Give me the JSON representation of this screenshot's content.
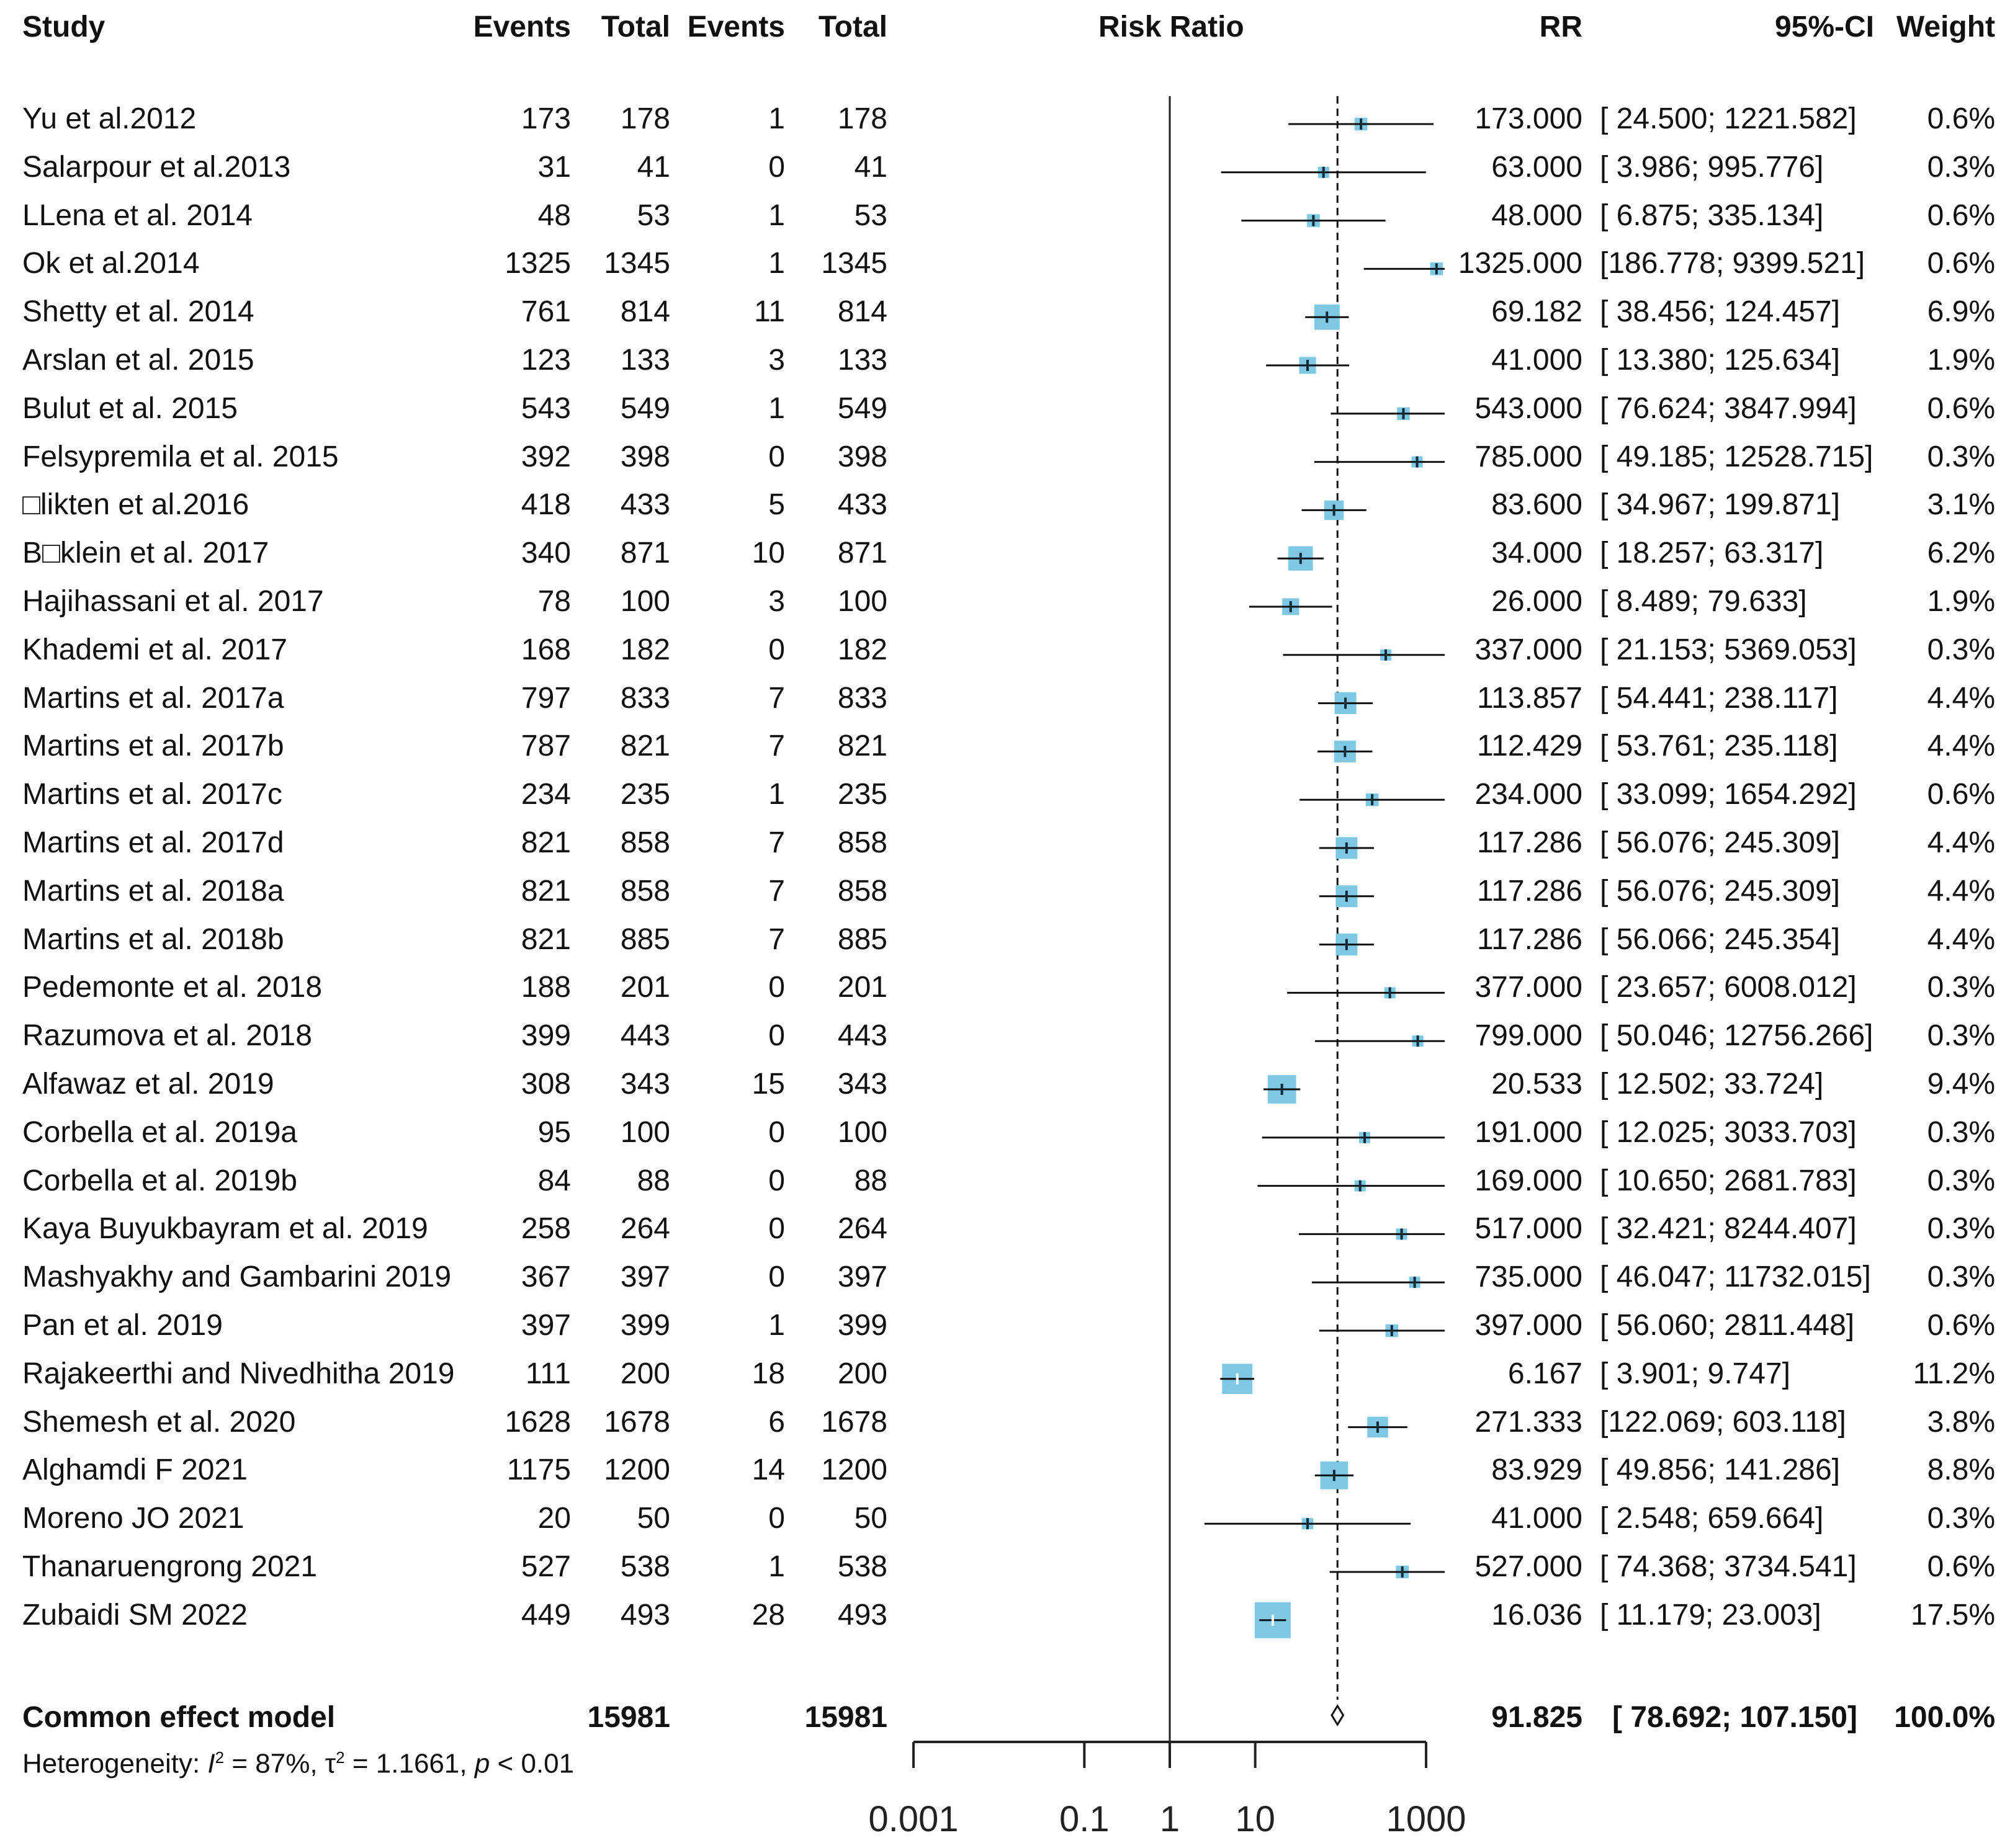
{
  "headers": {
    "study": "Study",
    "events1": "Events",
    "total1": "Total",
    "events2": "Events",
    "total2": "Total",
    "risk_ratio": "Risk Ratio",
    "rr": "RR",
    "ci": "95%-CI",
    "weight": "Weight"
  },
  "chart_data": {
    "type": "forest",
    "scale": "log",
    "xlim": [
      0.001,
      1000
    ],
    "x_ticks": [
      "0.001",
      "0.1",
      "1",
      "10",
      "1000"
    ],
    "reference_line": 1,
    "pooled_dashed_line": 91.825,
    "marker_color": "#7ec8e3",
    "studies": [
      {
        "study": "Yu et al.2012",
        "e1": "173",
        "n1": "178",
        "e2": "1",
        "n2": "178",
        "rr": "173.000",
        "ci": "[ 24.500; 1221.582]",
        "weight": "0.6%",
        "rr_val": 173.0,
        "lo": 24.5,
        "hi": 1221.582,
        "w": 0.6
      },
      {
        "study": "Salarpour et al.2013",
        "e1": "31",
        "n1": "41",
        "e2": "0",
        "n2": "41",
        "rr": "63.000",
        "ci": "[ 3.986; 995.776]",
        "weight": "0.3%",
        "rr_val": 63.0,
        "lo": 3.986,
        "hi": 995.776,
        "w": 0.3
      },
      {
        "study": "LLena et al. 2014",
        "e1": "48",
        "n1": "53",
        "e2": "1",
        "n2": "53",
        "rr": "48.000",
        "ci": "[ 6.875; 335.134]",
        "weight": "0.6%",
        "rr_val": 48.0,
        "lo": 6.875,
        "hi": 335.134,
        "w": 0.6
      },
      {
        "study": "Ok et al.2014",
        "e1": "1325",
        "n1": "1345",
        "e2": "1",
        "n2": "1345",
        "rr": "1325.000",
        "ci": "[186.778; 9399.521]",
        "weight": "0.6%",
        "rr_val": 1325.0,
        "lo": 186.778,
        "hi": 9399.521,
        "w": 0.6
      },
      {
        "study": "Shetty et al. 2014",
        "e1": "761",
        "n1": "814",
        "e2": "11",
        "n2": "814",
        "rr": "69.182",
        "ci": "[ 38.456; 124.457]",
        "weight": "6.9%",
        "rr_val": 69.182,
        "lo": 38.456,
        "hi": 124.457,
        "w": 6.9
      },
      {
        "study": "Arslan et al. 2015",
        "e1": "123",
        "n1": "133",
        "e2": "3",
        "n2": "133",
        "rr": "41.000",
        "ci": "[ 13.380; 125.634]",
        "weight": "1.9%",
        "rr_val": 41.0,
        "lo": 13.38,
        "hi": 125.634,
        "w": 1.9
      },
      {
        "study": "Bulut et al. 2015",
        "e1": "543",
        "n1": "549",
        "e2": "1",
        "n2": "549",
        "rr": "543.000",
        "ci": "[ 76.624; 3847.994]",
        "weight": "0.6%",
        "rr_val": 543.0,
        "lo": 76.624,
        "hi": 3847.994,
        "w": 0.6
      },
      {
        "study": "Felsypremila et al. 2015",
        "e1": "392",
        "n1": "398",
        "e2": "0",
        "n2": "398",
        "rr": "785.000",
        "ci": "[ 49.185; 12528.715]",
        "weight": "0.3%",
        "rr_val": 785.0,
        "lo": 49.185,
        "hi": 12528.715,
        "w": 0.3
      },
      {
        "study": "□likten et al.2016",
        "e1": "418",
        "n1": "433",
        "e2": "5",
        "n2": "433",
        "rr": "83.600",
        "ci": "[ 34.967; 199.871]",
        "weight": "3.1%",
        "rr_val": 83.6,
        "lo": 34.967,
        "hi": 199.871,
        "w": 3.1
      },
      {
        "study": "B□klein et al. 2017",
        "e1": "340",
        "n1": "871",
        "e2": "10",
        "n2": "871",
        "rr": "34.000",
        "ci": "[ 18.257; 63.317]",
        "weight": "6.2%",
        "rr_val": 34.0,
        "lo": 18.257,
        "hi": 63.317,
        "w": 6.2
      },
      {
        "study": "Hajihassani et al. 2017",
        "e1": "78",
        "n1": "100",
        "e2": "3",
        "n2": "100",
        "rr": "26.000",
        "ci": "[ 8.489; 79.633]",
        "weight": "1.9%",
        "rr_val": 26.0,
        "lo": 8.489,
        "hi": 79.633,
        "w": 1.9
      },
      {
        "study": "Khademi et al. 2017",
        "e1": "168",
        "n1": "182",
        "e2": "0",
        "n2": "182",
        "rr": "337.000",
        "ci": "[ 21.153; 5369.053]",
        "weight": "0.3%",
        "rr_val": 337.0,
        "lo": 21.153,
        "hi": 5369.053,
        "w": 0.3
      },
      {
        "study": "Martins et al. 2017a",
        "e1": "797",
        "n1": "833",
        "e2": "7",
        "n2": "833",
        "rr": "113.857",
        "ci": "[ 54.441; 238.117]",
        "weight": "4.4%",
        "rr_val": 113.857,
        "lo": 54.441,
        "hi": 238.117,
        "w": 4.4
      },
      {
        "study": "Martins et al. 2017b",
        "e1": "787",
        "n1": "821",
        "e2": "7",
        "n2": "821",
        "rr": "112.429",
        "ci": "[ 53.761; 235.118]",
        "weight": "4.4%",
        "rr_val": 112.429,
        "lo": 53.761,
        "hi": 235.118,
        "w": 4.4
      },
      {
        "study": "Martins et al. 2017c",
        "e1": "234",
        "n1": "235",
        "e2": "1",
        "n2": "235",
        "rr": "234.000",
        "ci": "[ 33.099; 1654.292]",
        "weight": "0.6%",
        "rr_val": 234.0,
        "lo": 33.099,
        "hi": 1654.292,
        "w": 0.6
      },
      {
        "study": "Martins et al. 2017d",
        "e1": "821",
        "n1": "858",
        "e2": "7",
        "n2": "858",
        "rr": "117.286",
        "ci": "[ 56.076; 245.309]",
        "weight": "4.4%",
        "rr_val": 117.286,
        "lo": 56.076,
        "hi": 245.309,
        "w": 4.4
      },
      {
        "study": "Martins et al. 2018a",
        "e1": "821",
        "n1": "858",
        "e2": "7",
        "n2": "858",
        "rr": "117.286",
        "ci": "[ 56.076; 245.309]",
        "weight": "4.4%",
        "rr_val": 117.286,
        "lo": 56.076,
        "hi": 245.309,
        "w": 4.4
      },
      {
        "study": "Martins et al. 2018b",
        "e1": "821",
        "n1": "885",
        "e2": "7",
        "n2": "885",
        "rr": "117.286",
        "ci": "[ 56.066; 245.354]",
        "weight": "4.4%",
        "rr_val": 117.286,
        "lo": 56.066,
        "hi": 245.354,
        "w": 4.4
      },
      {
        "study": "Pedemonte et al. 2018",
        "e1": "188",
        "n1": "201",
        "e2": "0",
        "n2": "201",
        "rr": "377.000",
        "ci": "[ 23.657; 6008.012]",
        "weight": "0.3%",
        "rr_val": 377.0,
        "lo": 23.657,
        "hi": 6008.012,
        "w": 0.3
      },
      {
        "study": "Razumova et al. 2018",
        "e1": "399",
        "n1": "443",
        "e2": "0",
        "n2": "443",
        "rr": "799.000",
        "ci": "[ 50.046; 12756.266]",
        "weight": "0.3%",
        "rr_val": 799.0,
        "lo": 50.046,
        "hi": 12756.266,
        "w": 0.3
      },
      {
        "study": "Alfawaz et al. 2019",
        "e1": "308",
        "n1": "343",
        "e2": "15",
        "n2": "343",
        "rr": "20.533",
        "ci": "[ 12.502; 33.724]",
        "weight": "9.4%",
        "rr_val": 20.533,
        "lo": 12.502,
        "hi": 33.724,
        "w": 9.4
      },
      {
        "study": "Corbella et al. 2019a",
        "e1": "95",
        "n1": "100",
        "e2": "0",
        "n2": "100",
        "rr": "191.000",
        "ci": "[ 12.025; 3033.703]",
        "weight": "0.3%",
        "rr_val": 191.0,
        "lo": 12.025,
        "hi": 3033.703,
        "w": 0.3
      },
      {
        "study": "Corbella et al. 2019b",
        "e1": "84",
        "n1": "88",
        "e2": "0",
        "n2": "88",
        "rr": "169.000",
        "ci": "[ 10.650; 2681.783]",
        "weight": "0.3%",
        "rr_val": 169.0,
        "lo": 10.65,
        "hi": 2681.783,
        "w": 0.3
      },
      {
        "study": "Kaya Buyukbayram et al. 2019",
        "e1": "258",
        "n1": "264",
        "e2": "0",
        "n2": "264",
        "rr": "517.000",
        "ci": "[ 32.421; 8244.407]",
        "weight": "0.3%",
        "rr_val": 517.0,
        "lo": 32.421,
        "hi": 8244.407,
        "w": 0.3
      },
      {
        "study": "Mashyakhy and Gambarini 2019",
        "e1": "367",
        "n1": "397",
        "e2": "0",
        "n2": "397",
        "rr": "735.000",
        "ci": "[ 46.047; 11732.015]",
        "weight": "0.3%",
        "rr_val": 735.0,
        "lo": 46.047,
        "hi": 11732.015,
        "w": 0.3
      },
      {
        "study": "Pan et al. 2019",
        "e1": "397",
        "n1": "399",
        "e2": "1",
        "n2": "399",
        "rr": "397.000",
        "ci": "[ 56.060; 2811.448]",
        "weight": "0.6%",
        "rr_val": 397.0,
        "lo": 56.06,
        "hi": 2811.448,
        "w": 0.6
      },
      {
        "study": "Rajakeerthi and Nivedhitha 2019",
        "e1": "111",
        "n1": "200",
        "e2": "18",
        "n2": "200",
        "rr": "6.167",
        "ci": "[ 3.901; 9.747]",
        "weight": "11.2%",
        "rr_val": 6.167,
        "lo": 3.901,
        "hi": 9.747,
        "w": 11.2
      },
      {
        "study": "Shemesh et al. 2020",
        "e1": "1628",
        "n1": "1678",
        "e2": "6",
        "n2": "1678",
        "rr": "271.333",
        "ci": "[122.069; 603.118]",
        "weight": "3.8%",
        "rr_val": 271.333,
        "lo": 122.069,
        "hi": 603.118,
        "w": 3.8
      },
      {
        "study": "Alghamdi F 2021",
        "e1": "1175",
        "n1": "1200",
        "e2": "14",
        "n2": "1200",
        "rr": "83.929",
        "ci": "[ 49.856; 141.286]",
        "weight": "8.8%",
        "rr_val": 83.929,
        "lo": 49.856,
        "hi": 141.286,
        "w": 8.8
      },
      {
        "study": "Moreno JO 2021",
        "e1": "20",
        "n1": "50",
        "e2": "0",
        "n2": "50",
        "rr": "41.000",
        "ci": "[ 2.548; 659.664]",
        "weight": "0.3%",
        "rr_val": 41.0,
        "lo": 2.548,
        "hi": 659.664,
        "w": 0.3
      },
      {
        "study": "Thanaruengrong 2021",
        "e1": "527",
        "n1": "538",
        "e2": "1",
        "n2": "538",
        "rr": "527.000",
        "ci": "[ 74.368; 3734.541]",
        "weight": "0.6%",
        "rr_val": 527.0,
        "lo": 74.368,
        "hi": 3734.541,
        "w": 0.6
      },
      {
        "study": "Zubaidi SM  2022",
        "e1": "449",
        "n1": "493",
        "e2": "28",
        "n2": "493",
        "rr": "16.036",
        "ci": "[ 11.179; 23.003]",
        "weight": "17.5%",
        "rr_val": 16.036,
        "lo": 11.179,
        "hi": 23.003,
        "w": 17.5
      }
    ],
    "pooled": {
      "label": "Common effect model",
      "total1": "15981",
      "total2": "15981",
      "rr": "91.825",
      "ci": "[ 78.692; 107.150]",
      "weight": "100.0%",
      "rr_val": 91.825,
      "lo": 78.692,
      "hi": 107.15
    },
    "heterogeneity": {
      "prefix": "Heterogeneity: ",
      "i2_value": " = 87%, ",
      "tau2_value": " = 1.1661, ",
      "p_value": " < 0.01"
    }
  }
}
